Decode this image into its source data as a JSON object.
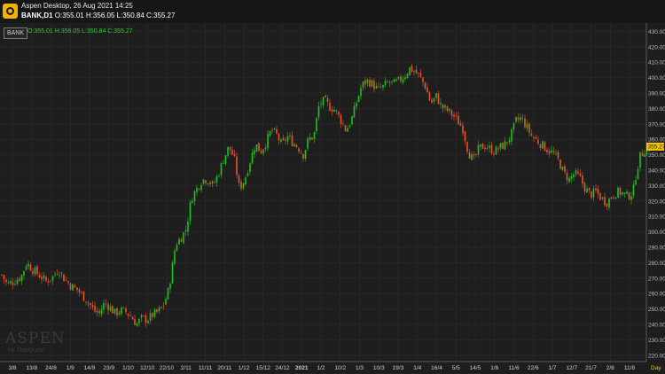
{
  "window": {
    "title": "Aspen Desktop, 26 Aug 2021 14:25",
    "symbol_line_symbol": "BANK,D1",
    "symbol_line_ohlc": "O:355.01 H:356.05 L:350.84 C:355.27"
  },
  "legend": {
    "symbol": "BANK",
    "ohlc": "O:355.01 H:356.05 L:350.84 C:355.27"
  },
  "watermark": {
    "brand": "ASPEN",
    "by": "by ThaiQuest"
  },
  "colors": {
    "up": "#1ec31e",
    "down": "#e8552b",
    "background": "#1e1e1e",
    "grid": "#2c2c2c",
    "price_tag": "#f5c400"
  },
  "chart_data": {
    "type": "candlestick",
    "title": "",
    "timeframe": "Day",
    "ylim": [
      215,
      430
    ],
    "yticks": [
      "430.00",
      "420.00",
      "410.00",
      "400.00",
      "390.00",
      "380.00",
      "370.00",
      "360.00",
      "350.00",
      "340.00",
      "330.00",
      "320.00",
      "310.00",
      "300.00",
      "290.00",
      "280.00",
      "270.00",
      "260.00",
      "250.00",
      "240.00",
      "230.00",
      "220.00"
    ],
    "last_price": "355.27",
    "xticks": [
      "3/8",
      "13/8",
      "24/8",
      "1/9",
      "14/9",
      "23/9",
      "1/10",
      "12/10",
      "22/10",
      "2/11",
      "11/11",
      "20/11",
      "1/12",
      "15/12",
      "24/12",
      "2021",
      "1/2",
      "10/2",
      "1/3",
      "10/3",
      "19/3",
      "1/4",
      "16/4",
      "5/5",
      "14/5",
      "1/6",
      "11/6",
      "22/6",
      "1/7",
      "12/7",
      "21/7",
      "2/8",
      "11/8"
    ],
    "xtick_bold": [
      "2021"
    ],
    "axis_unit_label": "Day",
    "close_path": [
      [
        0,
        274
      ],
      [
        8,
        266
      ],
      [
        16,
        268
      ],
      [
        24,
        271
      ],
      [
        30,
        280
      ],
      [
        36,
        276
      ],
      [
        44,
        272
      ],
      [
        52,
        268
      ],
      [
        60,
        271
      ],
      [
        66,
        276
      ],
      [
        72,
        270
      ],
      [
        80,
        265
      ],
      [
        88,
        262
      ],
      [
        94,
        258
      ],
      [
        100,
        254
      ],
      [
        106,
        249
      ],
      [
        112,
        247
      ],
      [
        118,
        254
      ],
      [
        124,
        251
      ],
      [
        130,
        247
      ],
      [
        136,
        249
      ],
      [
        142,
        248
      ],
      [
        148,
        245
      ],
      [
        154,
        240
      ],
      [
        160,
        244
      ],
      [
        166,
        243
      ],
      [
        172,
        246
      ],
      [
        178,
        248
      ],
      [
        184,
        252
      ],
      [
        190,
        262
      ],
      [
        194,
        276
      ],
      [
        198,
        292
      ],
      [
        204,
        296
      ],
      [
        210,
        302
      ],
      [
        216,
        322
      ],
      [
        222,
        328
      ],
      [
        228,
        334
      ],
      [
        234,
        334
      ],
      [
        240,
        330
      ],
      [
        246,
        337
      ],
      [
        252,
        347
      ],
      [
        258,
        355
      ],
      [
        264,
        348
      ],
      [
        270,
        328
      ],
      [
        276,
        334
      ],
      [
        282,
        346
      ],
      [
        288,
        357
      ],
      [
        294,
        352
      ],
      [
        300,
        358
      ],
      [
        306,
        366
      ],
      [
        312,
        363
      ],
      [
        318,
        356
      ],
      [
        324,
        362
      ],
      [
        330,
        358
      ],
      [
        336,
        355
      ],
      [
        342,
        350
      ],
      [
        348,
        360
      ],
      [
        354,
        362
      ],
      [
        360,
        383
      ],
      [
        366,
        385
      ],
      [
        372,
        381
      ],
      [
        378,
        379
      ],
      [
        384,
        373
      ],
      [
        390,
        366
      ],
      [
        396,
        372
      ],
      [
        402,
        384
      ],
      [
        408,
        395
      ],
      [
        414,
        398
      ],
      [
        420,
        396
      ],
      [
        426,
        392
      ],
      [
        432,
        394
      ],
      [
        438,
        397
      ],
      [
        444,
        396
      ],
      [
        450,
        398
      ],
      [
        456,
        401
      ],
      [
        462,
        406
      ],
      [
        468,
        404
      ],
      [
        474,
        400
      ],
      [
        480,
        394
      ],
      [
        486,
        383
      ],
      [
        492,
        388
      ],
      [
        498,
        381
      ],
      [
        504,
        379
      ],
      [
        510,
        376
      ],
      [
        516,
        372
      ],
      [
        522,
        367
      ],
      [
        528,
        352
      ],
      [
        534,
        346
      ],
      [
        540,
        354
      ],
      [
        546,
        356
      ],
      [
        552,
        354
      ],
      [
        558,
        352
      ],
      [
        564,
        355
      ],
      [
        570,
        357
      ],
      [
        576,
        362
      ],
      [
        582,
        372
      ],
      [
        588,
        374
      ],
      [
        594,
        368
      ],
      [
        600,
        362
      ],
      [
        606,
        359
      ],
      [
        612,
        356
      ],
      [
        618,
        353
      ],
      [
        624,
        351
      ],
      [
        630,
        346
      ],
      [
        636,
        338
      ],
      [
        642,
        334
      ],
      [
        648,
        338
      ],
      [
        654,
        335
      ],
      [
        660,
        328
      ],
      [
        666,
        324
      ],
      [
        672,
        326
      ],
      [
        678,
        322
      ],
      [
        684,
        319
      ],
      [
        690,
        323
      ],
      [
        696,
        326
      ],
      [
        702,
        325
      ],
      [
        708,
        323
      ],
      [
        714,
        326
      ],
      [
        718,
        340
      ],
      [
        722,
        349
      ],
      [
        728,
        354
      ],
      [
        733,
        355.27
      ]
    ]
  }
}
